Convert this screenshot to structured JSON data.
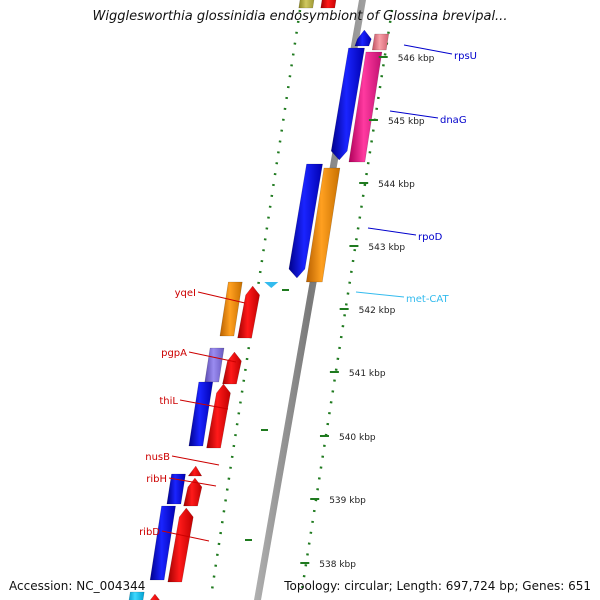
{
  "title": "Wigglesworthia glossinidia endosymbiont of Glossina brevipal...",
  "footer": {
    "accession_label": "Accession:",
    "accession": "NC_004344",
    "topology_label": "Topology:",
    "topology": "circular",
    "length_label": "Length:",
    "length": "697,724 bp",
    "genes_label": "Genes:",
    "genes": "651"
  },
  "colors": {
    "backbone": "#8c8c8c",
    "tick": "#1f7a1f",
    "gene_label_left": "#cc0000",
    "gene_label_right": "#0000cc",
    "trna_label": "#33bbee",
    "cds_blue": "#0a14ee",
    "cds_red": "#f01010",
    "cds_orange": "#f08a00",
    "cds_magenta": "#f0208a",
    "cds_purple": "#8070d8",
    "cds_olive": "#b8b040",
    "cds_pink": "#f08090",
    "cds_cyan": "#20c0f0"
  },
  "ruler": {
    "ticks": [
      "546 kbp",
      "545 kbp",
      "544 kbp",
      "543 kbp",
      "542 kbp",
      "541 kbp",
      "540 kbp",
      "539 kbp",
      "538 kbp"
    ]
  },
  "gene_labels_left": [
    "yqeI",
    "pgpA",
    "thiL",
    "nusB",
    "ribH",
    "ribD"
  ],
  "gene_labels_right": [
    "rpsU",
    "dnaG",
    "rpoD"
  ],
  "trna_labels": [
    "met-CAT"
  ],
  "features": [
    {
      "color": "cds_olive",
      "strand": "outer"
    },
    {
      "color": "cds_red",
      "strand": "outer"
    },
    {
      "color": "cds_blue",
      "strand": "inner",
      "name": "rpsU"
    },
    {
      "color": "cds_pink",
      "strand": "outer"
    },
    {
      "color": "cds_blue",
      "strand": "inner",
      "name": "dnaG"
    },
    {
      "color": "cds_magenta",
      "strand": "outer"
    },
    {
      "color": "cds_blue",
      "strand": "inner"
    },
    {
      "color": "cds_orange",
      "strand": "outer",
      "name": "rpoD"
    },
    {
      "color": "trna",
      "strand": "inner",
      "name": "met-CAT"
    },
    {
      "color": "cds_orange",
      "strand": "inner",
      "name": "yqeI"
    },
    {
      "color": "cds_red",
      "strand": "outer"
    },
    {
      "color": "cds_purple",
      "strand": "inner",
      "name": "pgpA"
    },
    {
      "color": "cds_red",
      "strand": "outer"
    },
    {
      "color": "cds_blue",
      "strand": "inner",
      "name": "thiL"
    },
    {
      "color": "cds_red",
      "strand": "outer"
    },
    {
      "color": "cds_red",
      "strand": "outer",
      "name": "nusB"
    },
    {
      "color": "cds_blue",
      "strand": "inner",
      "name": "ribH"
    },
    {
      "color": "cds_red",
      "strand": "outer"
    },
    {
      "color": "cds_blue",
      "strand": "inner",
      "name": "ribD"
    },
    {
      "color": "cds_red",
      "strand": "outer"
    },
    {
      "color": "cds_cyan",
      "strand": "inner"
    },
    {
      "color": "cds_red",
      "strand": "outer"
    }
  ]
}
